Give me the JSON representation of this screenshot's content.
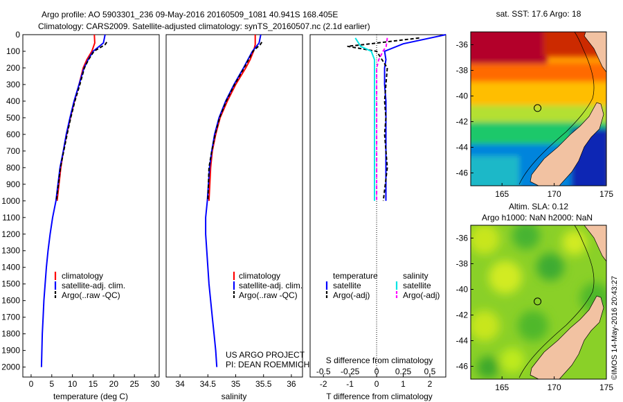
{
  "header": {
    "line1": "Argo profile: AO 5903301_236 09-May-2016 20160509_1081 40.941S 168.405E",
    "line2": "Climatology: CARS2009. Satellite-adjusted climatology: synTS_20160507.nc (2.1d earlier)"
  },
  "credit": "©IMOS 14-May-2016 20:43:27",
  "colors": {
    "climatology": "#ff0000",
    "satellite": "#0000ff",
    "argo": "#000000",
    "sal_satellite": "#00e5e5",
    "sal_argo": "#ff00ff",
    "land": "#f2c2a2"
  },
  "chart_data": [
    {
      "type": "line",
      "xlabel": "temperature (deg C)",
      "ylabel": "",
      "xlim": [
        -2,
        31
      ],
      "ylim": [
        2060,
        0
      ],
      "xticks": [
        "0",
        "5",
        "10",
        "15",
        "20",
        "25",
        "30"
      ],
      "yticks": [
        "0",
        "100",
        "200",
        "300",
        "400",
        "500",
        "600",
        "700",
        "800",
        "900",
        "1000",
        "1100",
        "1200",
        "1300",
        "1400",
        "1500",
        "1600",
        "1700",
        "1800",
        "1900",
        "2000"
      ],
      "legend_position": "lower-left",
      "series": [
        {
          "name": "climatology",
          "x": [
            15.3,
            15.4,
            14.7,
            13.5,
            12.6,
            11.6,
            10.5,
            9.5,
            8.6,
            7.8,
            7.2,
            6.3
          ],
          "y": [
            0,
            50,
            100,
            150,
            200,
            300,
            400,
            500,
            600,
            700,
            800,
            1000
          ]
        },
        {
          "name": "satellite-adj. clim.",
          "x": [
            17.9,
            17.5,
            15.0,
            13.8,
            12.8,
            11.6,
            10.4,
            9.4,
            8.5,
            7.8,
            7.0,
            6.0,
            5.2,
            4.6,
            4.1,
            3.7,
            3.4,
            3.1,
            2.9,
            2.7,
            2.6,
            2.5
          ],
          "y": [
            0,
            50,
            100,
            150,
            200,
            300,
            400,
            500,
            600,
            700,
            800,
            1000,
            1100,
            1200,
            1300,
            1400,
            1500,
            1600,
            1700,
            1800,
            1900,
            2000
          ]
        },
        {
          "name": "Argo(..raw -QC)",
          "x": [
            18.3,
            17.9,
            15.2,
            13.9,
            12.9,
            11.8,
            10.6,
            9.6,
            8.7,
            7.9,
            7.1,
            6.1
          ],
          "y": [
            45,
            60,
            100,
            150,
            200,
            300,
            400,
            500,
            600,
            700,
            800,
            1000
          ]
        }
      ]
    },
    {
      "type": "line",
      "xlabel": "salinity",
      "ylabel": "",
      "xlim": [
        33.75,
        36.2
      ],
      "ylim": [
        2060,
        0
      ],
      "xticks": [
        "34",
        "34.5",
        "35",
        "35.5",
        "36"
      ],
      "legend_position": "lower-left",
      "annotations": [
        "US ARGO PROJECT",
        "PI: DEAN ROEMMICH"
      ],
      "series": [
        {
          "name": "climatology",
          "x": [
            35.35,
            35.35,
            35.32,
            35.26,
            35.18,
            35.0,
            34.85,
            34.72,
            34.64,
            34.58,
            34.55,
            34.52
          ],
          "y": [
            0,
            60,
            100,
            150,
            200,
            300,
            400,
            500,
            600,
            700,
            800,
            1000
          ]
        },
        {
          "name": "satellite-adj. clim.",
          "x": [
            35.45,
            35.42,
            35.3,
            35.22,
            35.14,
            34.97,
            34.82,
            34.7,
            34.62,
            34.57,
            34.53,
            34.49,
            34.46,
            34.46,
            34.48,
            34.5,
            34.52,
            34.55,
            34.58,
            34.61,
            34.64,
            34.66
          ],
          "y": [
            0,
            50,
            100,
            150,
            200,
            300,
            400,
            500,
            600,
            700,
            800,
            1000,
            1100,
            1200,
            1300,
            1400,
            1500,
            1600,
            1700,
            1800,
            1900,
            2000
          ]
        },
        {
          "name": "Argo(..raw -QC)",
          "x": [
            35.47,
            35.44,
            35.31,
            35.23,
            35.15,
            34.98,
            34.83,
            34.71,
            34.63,
            34.57,
            34.52,
            34.5
          ],
          "y": [
            45,
            60,
            100,
            150,
            200,
            300,
            400,
            500,
            600,
            700,
            800,
            1000
          ]
        }
      ]
    },
    {
      "type": "line",
      "xlabel": "T difference from climatology",
      "xlabel_top": "S difference from climatology",
      "xlim": [
        -2.5,
        2.6
      ],
      "ylim": [
        2060,
        0
      ],
      "xticks": [
        "-2",
        "-1",
        "0",
        "1",
        "2"
      ],
      "xticks_top": [
        "-0.5",
        "-0.25",
        "0",
        "0.25",
        "0.5"
      ],
      "legend_position": "lower",
      "legend_titles": [
        "temperature",
        "salinity"
      ],
      "series": [
        {
          "name": "satellite",
          "variable": "temperature",
          "x": [
            2.6,
            1.0,
            0.3,
            0.35,
            0.3,
            0.3,
            0.35,
            0.35,
            0.35,
            0.35,
            0.35,
            0.35
          ],
          "y": [
            0,
            55,
            100,
            150,
            200,
            300,
            400,
            500,
            600,
            700,
            800,
            1000
          ]
        },
        {
          "name": "Argo(-adj)",
          "variable": "temperature",
          "x": [
            1.6,
            -0.5,
            -1.1,
            0.0,
            0.2,
            0.4,
            0.35,
            0.3,
            0.35,
            0.3,
            0.4,
            0.25
          ],
          "y": [
            20,
            60,
            70,
            100,
            150,
            200,
            300,
            400,
            500,
            600,
            800,
            1000
          ]
        },
        {
          "name": "satellite",
          "variable": "salinity",
          "x": [
            -0.2,
            -0.15,
            -0.05,
            -0.02,
            -0.02,
            -0.02,
            -0.02,
            -0.02,
            -0.02,
            -0.02,
            -0.02,
            -0.02
          ],
          "y": [
            20,
            70,
            100,
            150,
            200,
            300,
            400,
            500,
            600,
            700,
            800,
            1000
          ]
        },
        {
          "name": "Argo(-adj)",
          "variable": "salinity",
          "x": [
            0.1,
            0.09,
            0.06,
            0.02,
            0.0,
            0.0,
            0.0,
            0.0,
            0.0,
            0.0,
            0.0,
            0.0
          ],
          "y": [
            20,
            70,
            100,
            150,
            200,
            300,
            400,
            500,
            600,
            700,
            800,
            1000
          ]
        }
      ]
    },
    {
      "type": "heatmap",
      "title": "sat. SST: 17.6 Argo: 18",
      "xlim": [
        162,
        175
      ],
      "ylim": [
        -47,
        -35
      ],
      "xticks": [
        "165",
        "170",
        "175"
      ],
      "yticks": [
        "-36",
        "-38",
        "-40",
        "-42",
        "-44",
        "-46"
      ],
      "marker": {
        "lon": 168.405,
        "lat": -40.941
      }
    },
    {
      "type": "heatmap",
      "title": "Altim. SLA: 0.12",
      "subtitle": "Argo h1000: NaN h2000: NaN",
      "xlim": [
        162,
        175
      ],
      "ylim": [
        -47,
        -35
      ],
      "xticks": [
        "165",
        "170",
        "175"
      ],
      "yticks": [
        "-36",
        "-38",
        "-40",
        "-42",
        "-44",
        "-46"
      ],
      "marker": {
        "lon": 168.405,
        "lat": -40.941
      }
    }
  ]
}
